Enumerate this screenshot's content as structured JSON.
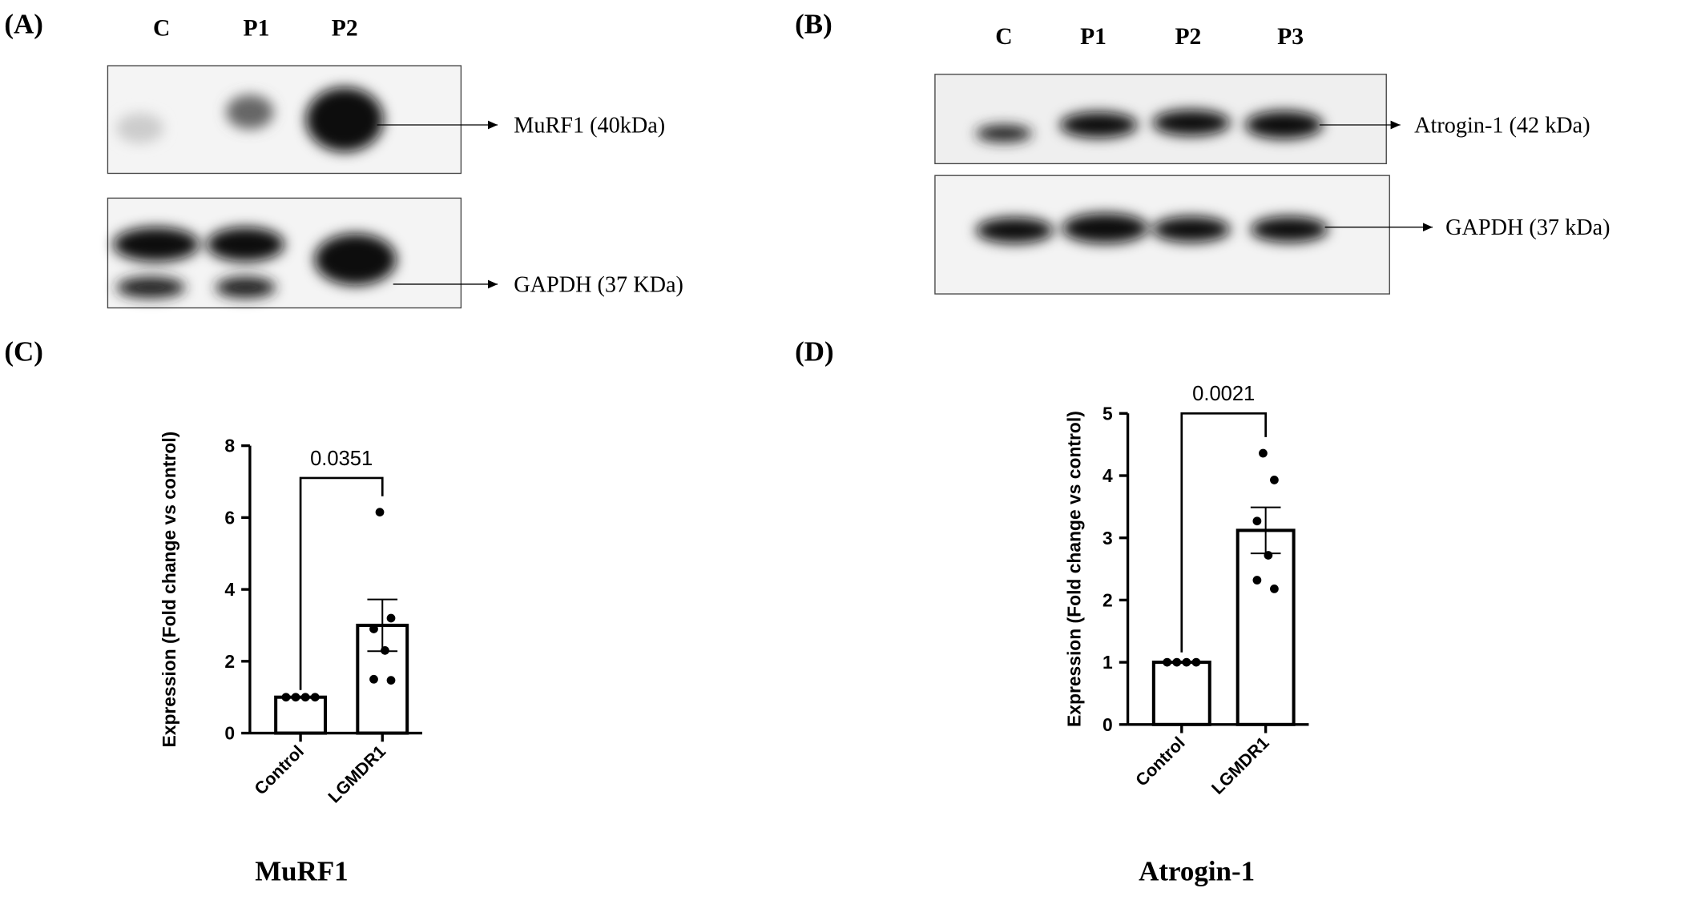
{
  "blots": [
    {
      "panel": "(A)",
      "lanes": [
        "C",
        "P1",
        "P2"
      ],
      "bands": [
        "MuRF1 (40kDa)",
        "GAPDH (37 KDa)"
      ]
    },
    {
      "panel": "(B)",
      "lanes": [
        "C",
        "P1",
        "P2",
        "P3"
      ],
      "bands": [
        "Atrogin-1 (42 kDa)",
        "GAPDH (37 kDa)"
      ]
    }
  ],
  "chart_data": [
    {
      "type": "bar",
      "panel": "(C)",
      "title": "MuRF1",
      "y_label": "Expression (Fold change vs control)",
      "categories": [
        "Control",
        "LGMDR1"
      ],
      "values": [
        1,
        3.0
      ],
      "errors": [
        0,
        0.72
      ],
      "points": [
        [
          1,
          1,
          1,
          1
        ],
        [
          6.15,
          3.2,
          2.9,
          2.3,
          1.5,
          1.47
        ]
      ],
      "annotation": "0.0351",
      "ylim": [
        0,
        8
      ],
      "yticks": [
        0,
        2,
        4,
        6,
        8
      ],
      "color": "#ffffff"
    },
    {
      "type": "bar",
      "panel": "(D)",
      "title": "Atrogin-1",
      "y_label": "Expression (Fold change vs control)",
      "categories": [
        "Control",
        "LGMDR1"
      ],
      "values": [
        1,
        3.12
      ],
      "errors": [
        0,
        0.37
      ],
      "points": [
        [
          1,
          1,
          1,
          1
        ],
        [
          4.36,
          3.93,
          3.27,
          2.72,
          2.32,
          2.18
        ]
      ],
      "annotation": "0.0021",
      "ylim": [
        0,
        5
      ],
      "yticks": [
        0,
        1,
        2,
        3,
        4,
        5
      ],
      "color": "#ffffff"
    }
  ]
}
